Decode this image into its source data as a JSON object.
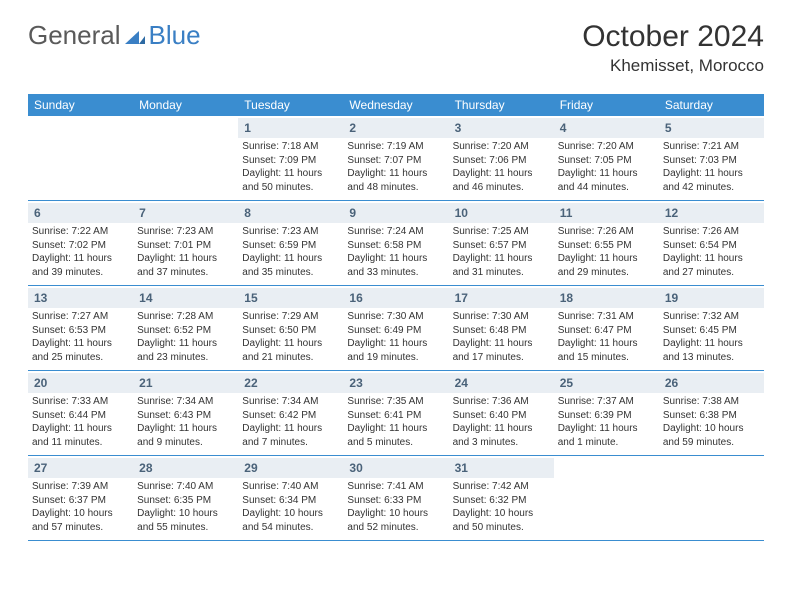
{
  "logo": {
    "text1": "General",
    "text2": "Blue"
  },
  "title": "October 2024",
  "location": "Khemisset, Morocco",
  "colors": {
    "header_bg": "#3a8dd0",
    "header_text": "#ffffff",
    "daynum_bg": "#e9eef3",
    "daynum_text": "#4a6279",
    "border": "#3a8dd0",
    "body_text": "#333333",
    "logo_gray": "#5a5a5a",
    "logo_blue": "#3a7fc4"
  },
  "day_names": [
    "Sunday",
    "Monday",
    "Tuesday",
    "Wednesday",
    "Thursday",
    "Friday",
    "Saturday"
  ],
  "weeks": [
    [
      null,
      null,
      {
        "n": "1",
        "sr": "7:18 AM",
        "ss": "7:09 PM",
        "dl": "11 hours and 50 minutes."
      },
      {
        "n": "2",
        "sr": "7:19 AM",
        "ss": "7:07 PM",
        "dl": "11 hours and 48 minutes."
      },
      {
        "n": "3",
        "sr": "7:20 AM",
        "ss": "7:06 PM",
        "dl": "11 hours and 46 minutes."
      },
      {
        "n": "4",
        "sr": "7:20 AM",
        "ss": "7:05 PM",
        "dl": "11 hours and 44 minutes."
      },
      {
        "n": "5",
        "sr": "7:21 AM",
        "ss": "7:03 PM",
        "dl": "11 hours and 42 minutes."
      }
    ],
    [
      {
        "n": "6",
        "sr": "7:22 AM",
        "ss": "7:02 PM",
        "dl": "11 hours and 39 minutes."
      },
      {
        "n": "7",
        "sr": "7:23 AM",
        "ss": "7:01 PM",
        "dl": "11 hours and 37 minutes."
      },
      {
        "n": "8",
        "sr": "7:23 AM",
        "ss": "6:59 PM",
        "dl": "11 hours and 35 minutes."
      },
      {
        "n": "9",
        "sr": "7:24 AM",
        "ss": "6:58 PM",
        "dl": "11 hours and 33 minutes."
      },
      {
        "n": "10",
        "sr": "7:25 AM",
        "ss": "6:57 PM",
        "dl": "11 hours and 31 minutes."
      },
      {
        "n": "11",
        "sr": "7:26 AM",
        "ss": "6:55 PM",
        "dl": "11 hours and 29 minutes."
      },
      {
        "n": "12",
        "sr": "7:26 AM",
        "ss": "6:54 PM",
        "dl": "11 hours and 27 minutes."
      }
    ],
    [
      {
        "n": "13",
        "sr": "7:27 AM",
        "ss": "6:53 PM",
        "dl": "11 hours and 25 minutes."
      },
      {
        "n": "14",
        "sr": "7:28 AM",
        "ss": "6:52 PM",
        "dl": "11 hours and 23 minutes."
      },
      {
        "n": "15",
        "sr": "7:29 AM",
        "ss": "6:50 PM",
        "dl": "11 hours and 21 minutes."
      },
      {
        "n": "16",
        "sr": "7:30 AM",
        "ss": "6:49 PM",
        "dl": "11 hours and 19 minutes."
      },
      {
        "n": "17",
        "sr": "7:30 AM",
        "ss": "6:48 PM",
        "dl": "11 hours and 17 minutes."
      },
      {
        "n": "18",
        "sr": "7:31 AM",
        "ss": "6:47 PM",
        "dl": "11 hours and 15 minutes."
      },
      {
        "n": "19",
        "sr": "7:32 AM",
        "ss": "6:45 PM",
        "dl": "11 hours and 13 minutes."
      }
    ],
    [
      {
        "n": "20",
        "sr": "7:33 AM",
        "ss": "6:44 PM",
        "dl": "11 hours and 11 minutes."
      },
      {
        "n": "21",
        "sr": "7:34 AM",
        "ss": "6:43 PM",
        "dl": "11 hours and 9 minutes."
      },
      {
        "n": "22",
        "sr": "7:34 AM",
        "ss": "6:42 PM",
        "dl": "11 hours and 7 minutes."
      },
      {
        "n": "23",
        "sr": "7:35 AM",
        "ss": "6:41 PM",
        "dl": "11 hours and 5 minutes."
      },
      {
        "n": "24",
        "sr": "7:36 AM",
        "ss": "6:40 PM",
        "dl": "11 hours and 3 minutes."
      },
      {
        "n": "25",
        "sr": "7:37 AM",
        "ss": "6:39 PM",
        "dl": "11 hours and 1 minute."
      },
      {
        "n": "26",
        "sr": "7:38 AM",
        "ss": "6:38 PM",
        "dl": "10 hours and 59 minutes."
      }
    ],
    [
      {
        "n": "27",
        "sr": "7:39 AM",
        "ss": "6:37 PM",
        "dl": "10 hours and 57 minutes."
      },
      {
        "n": "28",
        "sr": "7:40 AM",
        "ss": "6:35 PM",
        "dl": "10 hours and 55 minutes."
      },
      {
        "n": "29",
        "sr": "7:40 AM",
        "ss": "6:34 PM",
        "dl": "10 hours and 54 minutes."
      },
      {
        "n": "30",
        "sr": "7:41 AM",
        "ss": "6:33 PM",
        "dl": "10 hours and 52 minutes."
      },
      {
        "n": "31",
        "sr": "7:42 AM",
        "ss": "6:32 PM",
        "dl": "10 hours and 50 minutes."
      },
      null,
      null
    ]
  ],
  "labels": {
    "sunrise": "Sunrise: ",
    "sunset": "Sunset: ",
    "daylight": "Daylight: "
  }
}
